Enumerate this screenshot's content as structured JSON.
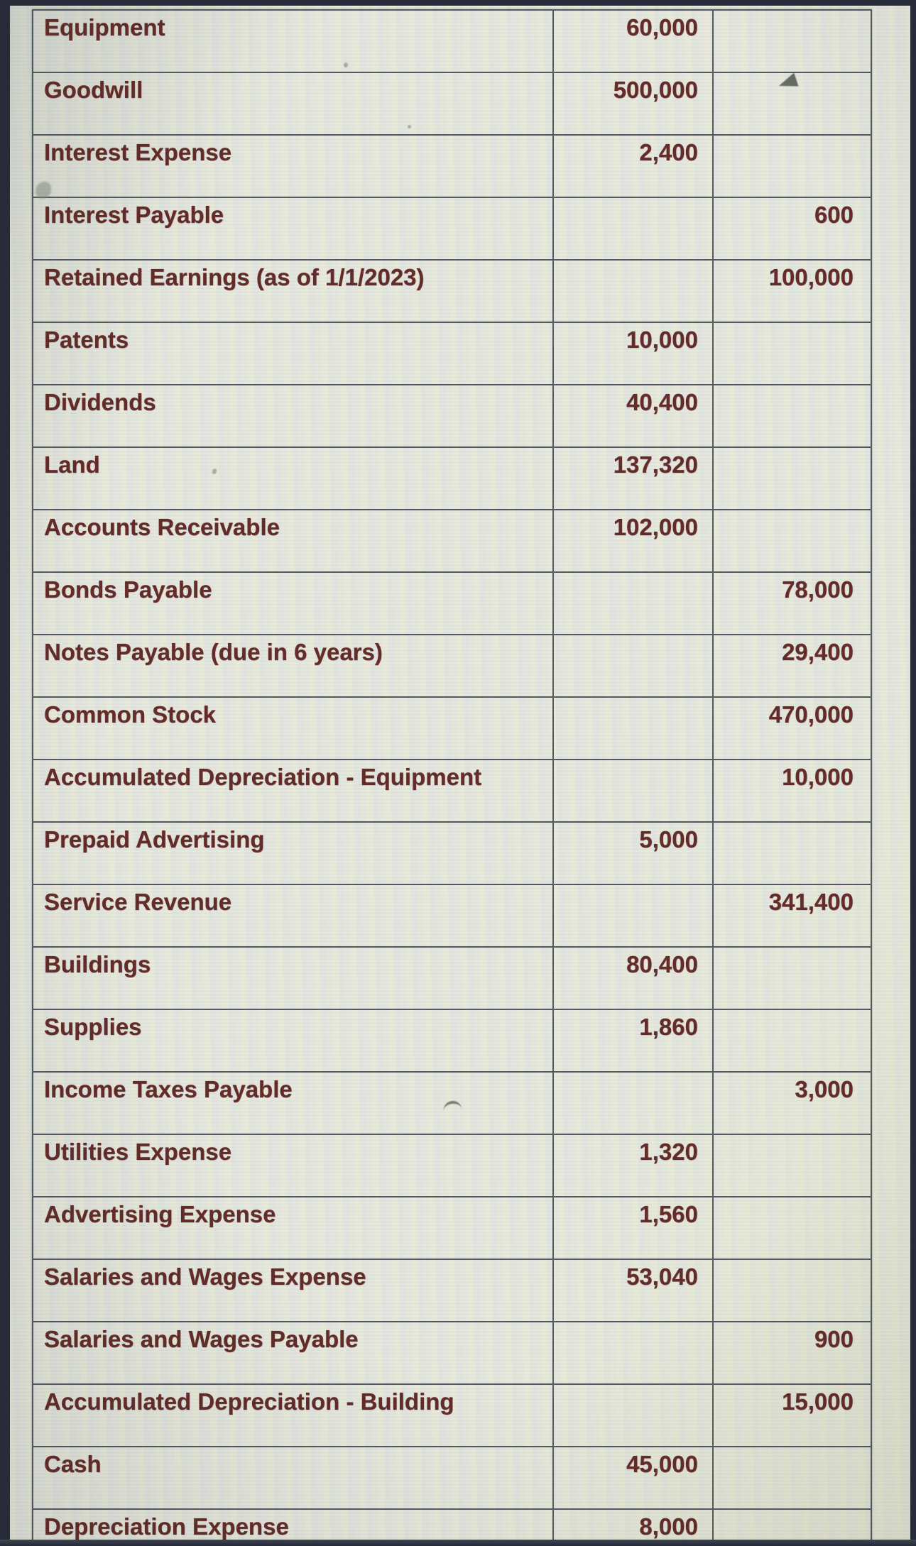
{
  "colors": {
    "text_maroon": "#632b29",
    "grid_line": "#525a60",
    "screen_background": "#e5e7de",
    "photo_frame": "#272b3a"
  },
  "icons": {
    "cursor": "mouse-cursor-arrow"
  },
  "table": {
    "rows": [
      {
        "account": "Equipment",
        "debit": "60,000",
        "credit": ""
      },
      {
        "account": "Goodwill",
        "debit": "500,000",
        "credit": ""
      },
      {
        "account": "Interest Expense",
        "debit": "2,400",
        "credit": ""
      },
      {
        "account": "Interest Payable",
        "debit": "",
        "credit": "600"
      },
      {
        "account": "Retained Earnings (as of 1/1/2023)",
        "debit": "",
        "credit": "100,000"
      },
      {
        "account": "Patents",
        "debit": "10,000",
        "credit": ""
      },
      {
        "account": "Dividends",
        "debit": "40,400",
        "credit": ""
      },
      {
        "account": "Land",
        "debit": "137,320",
        "credit": ""
      },
      {
        "account": "Accounts Receivable",
        "debit": "102,000",
        "credit": ""
      },
      {
        "account": "Bonds Payable",
        "debit": "",
        "credit": "78,000"
      },
      {
        "account": "Notes Payable (due in 6 years)",
        "debit": "",
        "credit": "29,400"
      },
      {
        "account": "Common Stock",
        "debit": "",
        "credit": "470,000"
      },
      {
        "account": "Accumulated Depreciation - Equipment",
        "debit": "",
        "credit": "10,000"
      },
      {
        "account": "Prepaid Advertising",
        "debit": "5,000",
        "credit": ""
      },
      {
        "account": "Service Revenue",
        "debit": "",
        "credit": "341,400"
      },
      {
        "account": "Buildings",
        "debit": "80,400",
        "credit": ""
      },
      {
        "account": "Supplies",
        "debit": "1,860",
        "credit": ""
      },
      {
        "account": "Income Taxes Payable",
        "debit": "",
        "credit": "3,000"
      },
      {
        "account": "Utilities Expense",
        "debit": "1,320",
        "credit": ""
      },
      {
        "account": "Advertising Expense",
        "debit": "1,560",
        "credit": ""
      },
      {
        "account": "Salaries and Wages Expense",
        "debit": "53,040",
        "credit": ""
      },
      {
        "account": "Salaries and Wages Payable",
        "debit": "",
        "credit": "900"
      },
      {
        "account": "Accumulated Depreciation - Building",
        "debit": "",
        "credit": "15,000"
      },
      {
        "account": "Cash",
        "debit": "45,000",
        "credit": ""
      },
      {
        "account": "Depreciation Expense",
        "debit": "8,000",
        "credit": ""
      }
    ]
  }
}
